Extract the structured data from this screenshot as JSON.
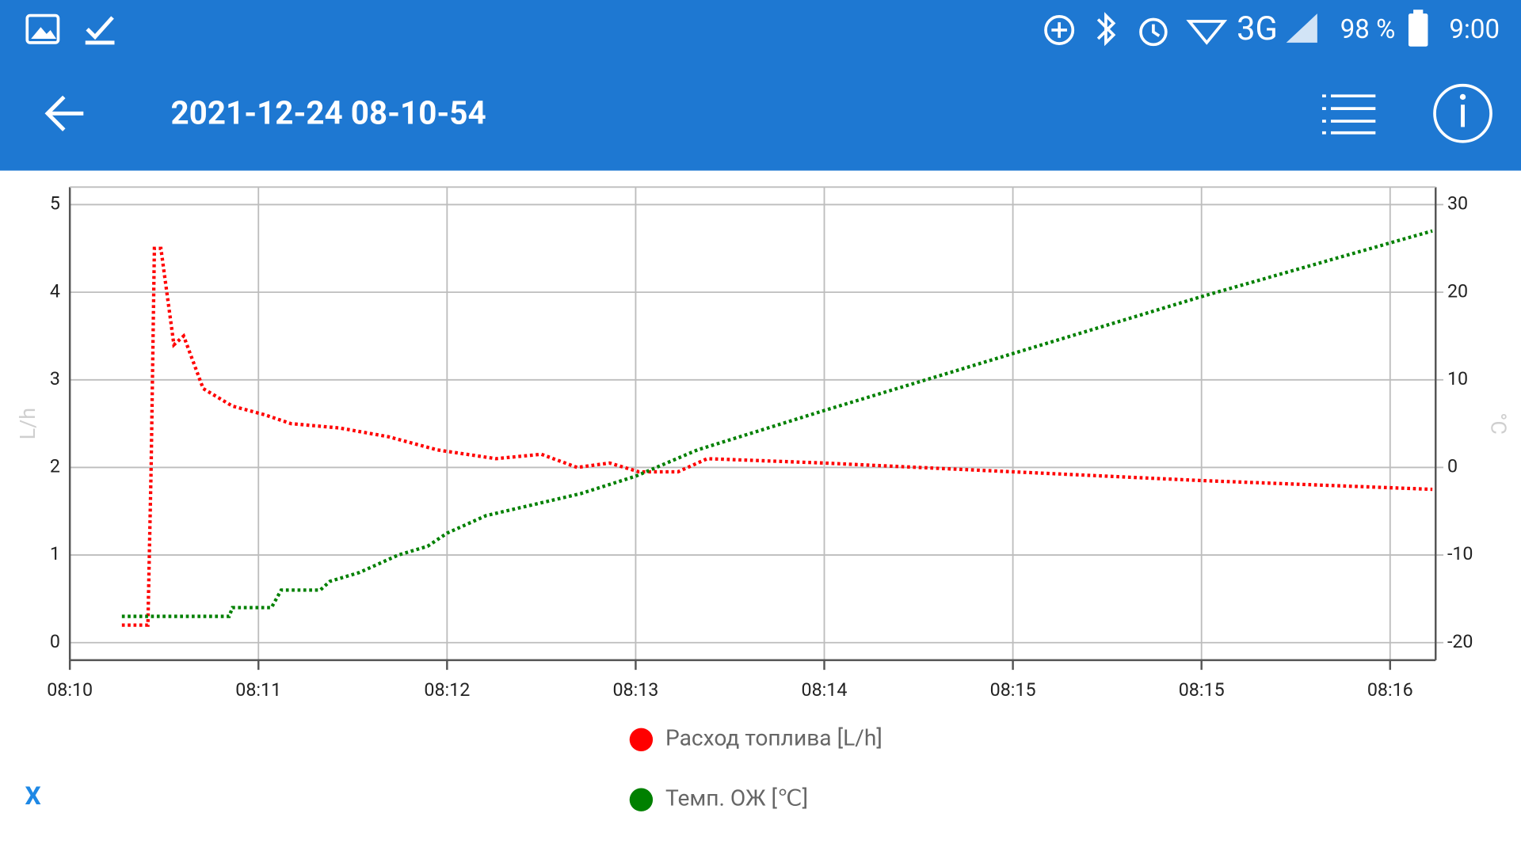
{
  "status_bar": {
    "network": "3G",
    "battery": "98 %",
    "time": "9:00"
  },
  "app_bar": {
    "title": "2021-12-24 08-10-54"
  },
  "chart_data": {
    "type": "line",
    "ylabel": "L/h",
    "y2label": "°C",
    "xlim": [
      10,
      430
    ],
    "xticks": [
      {
        "value": 10,
        "label": "08:10"
      },
      {
        "value": 68,
        "label": "08:11"
      },
      {
        "value": 126,
        "label": "08:12"
      },
      {
        "value": 184,
        "label": "08:13"
      },
      {
        "value": 242,
        "label": "08:14"
      },
      {
        "value": 300,
        "label": "08:15"
      },
      {
        "value": 358,
        "label": "08:15"
      },
      {
        "value": 416,
        "label": "08:16"
      }
    ],
    "ylim": [
      -0.2,
      5.2
    ],
    "yticks": [
      0,
      1,
      2,
      3,
      4,
      5
    ],
    "y2lim": [
      -22,
      32
    ],
    "y2ticks": [
      -20,
      -10,
      0,
      10,
      20,
      30
    ],
    "grid": true,
    "series": [
      {
        "name": "Расход топлива [L/h]",
        "color": "#ff0000",
        "x": [
          26,
          34,
          35,
          36,
          38,
          42,
          45,
          51,
          60,
          70,
          78,
          93,
          108,
          123,
          141,
          155,
          166,
          176,
          185,
          197,
          206,
          242,
          300,
          358,
          429
        ],
        "values": [
          0.2,
          0.2,
          2,
          4.5,
          4.5,
          3.4,
          3.5,
          2.9,
          2.7,
          2.6,
          2.5,
          2.45,
          2.35,
          2.2,
          2.1,
          2.15,
          2.0,
          2.05,
          1.95,
          1.95,
          2.1,
          2.05,
          1.95,
          1.85,
          1.75
        ]
      },
      {
        "name": "Темп. ОЖ [℃]",
        "color": "#008000",
        "axis": "y2",
        "x": [
          26,
          59,
          60,
          72,
          75,
          87,
          90,
          99,
          111,
          120,
          126,
          138,
          167,
          184,
          203,
          242,
          300,
          358,
          429
        ],
        "values": [
          -17,
          -17,
          -16,
          -16,
          -14,
          -14,
          -13,
          -12,
          -10,
          -9,
          -7.5,
          -5.5,
          -3,
          -1,
          2,
          6.5,
          13,
          19.5,
          27
        ]
      }
    ]
  },
  "footer": {
    "close": "X"
  }
}
